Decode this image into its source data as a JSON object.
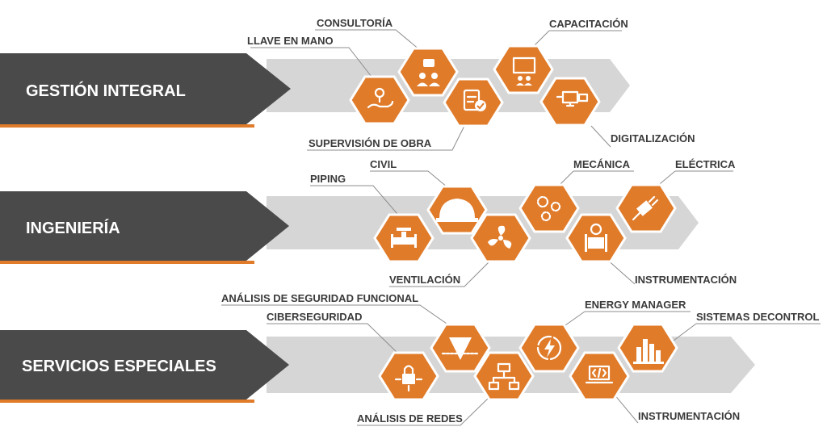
{
  "sections": [
    {
      "title": "GESTIÓN INTEGRAL",
      "items": [
        {
          "label": "LLAVE EN MANO",
          "icon": "hand-pin-icon"
        },
        {
          "label": "CONSULTORÍA",
          "icon": "chat-people-icon"
        },
        {
          "label": "SUPERVISIÓN DE OBRA",
          "icon": "clipboard-check-icon"
        },
        {
          "label": "CAPACITACIÓN",
          "icon": "presentation-icon"
        },
        {
          "label": "DIGITALIZACIÓN",
          "icon": "monitor-network-icon"
        }
      ]
    },
    {
      "title": "INGENIERÍA",
      "items": [
        {
          "label": "PIPING",
          "icon": "valve-icon"
        },
        {
          "label": "CIVIL",
          "icon": "hard-hat-icon"
        },
        {
          "label": "VENTILACIÓN",
          "icon": "fan-icon"
        },
        {
          "label": "MECÁNICA",
          "icon": "gears-icon"
        },
        {
          "label": "INSTRUMENTACIÓN",
          "icon": "flow-meter-icon"
        },
        {
          "label": "ELÉCTRICA",
          "icon": "plug-icon"
        }
      ]
    },
    {
      "title": "SERVICIOS ESPECIALES",
      "items": [
        {
          "label": "CIBERSEGURIDAD",
          "icon": "lock-circuit-icon"
        },
        {
          "label": "ANÁLISIS DE SEGURIDAD FUNCIONAL",
          "icon": "funnel-icon"
        },
        {
          "label": "ANÁLISIS DE REDES",
          "icon": "network-icon"
        },
        {
          "label": "ENERGY MANAGER",
          "icon": "energy-cycle-icon"
        },
        {
          "label": "INSTRUMENTACIÓN",
          "icon": "code-laptop-icon"
        },
        {
          "label": "SISTEMAS DECONTROL",
          "icon": "factory-icon"
        }
      ]
    }
  ],
  "colors": {
    "banner": "#4a4a4a",
    "accent": "#e07b2a",
    "arrow": "#d6d6d6",
    "text": "#3a3a3a"
  }
}
